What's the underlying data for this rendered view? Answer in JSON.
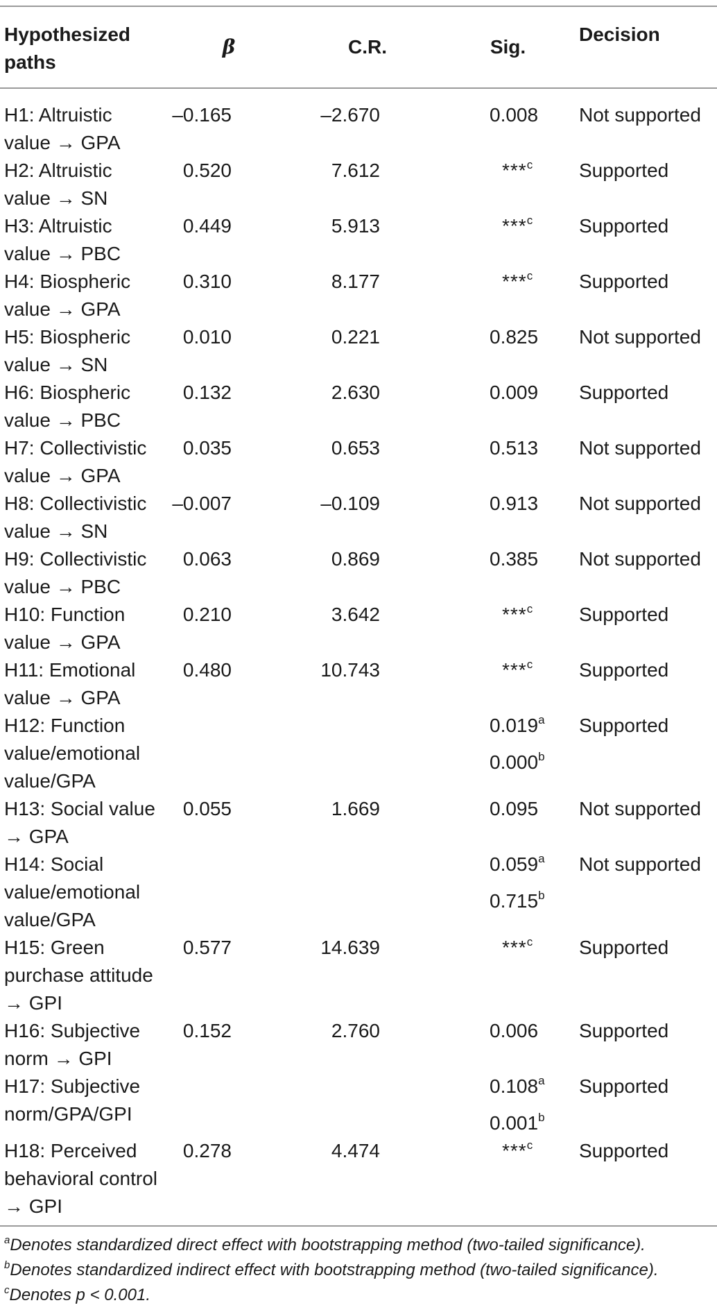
{
  "table": {
    "headers": {
      "path": "Hypothesized paths",
      "beta": "β",
      "cr": "C.R.",
      "sig": "Sig.",
      "decision": "Decision"
    },
    "rows": [
      {
        "path": "H1: Altruistic value → GPA",
        "beta": "–0.165",
        "cr": "–2.670",
        "sig": [
          "0.008"
        ],
        "decision": "Not supported"
      },
      {
        "path": "H2: Altruistic value → SN",
        "beta": "0.520",
        "cr": "7.612",
        "sig": [
          "***c"
        ],
        "decision": "Supported"
      },
      {
        "path": "H3: Altruistic value → PBC",
        "beta": "0.449",
        "cr": "5.913",
        "sig": [
          "***c"
        ],
        "decision": "Supported"
      },
      {
        "path": "H4: Biospheric value → GPA",
        "beta": "0.310",
        "cr": "8.177",
        "sig": [
          "***c"
        ],
        "decision": "Supported"
      },
      {
        "path": "H5: Biospheric value → SN",
        "beta": "0.010",
        "cr": "0.221",
        "sig": [
          "0.825"
        ],
        "decision": "Not supported"
      },
      {
        "path": "H6: Biospheric value → PBC",
        "beta": "0.132",
        "cr": "2.630",
        "sig": [
          "0.009"
        ],
        "decision": "Supported"
      },
      {
        "path": "H7: Collectivistic value → GPA",
        "beta": "0.035",
        "cr": "0.653",
        "sig": [
          "0.513"
        ],
        "decision": "Not supported"
      },
      {
        "path": "H8: Collectivistic value → SN",
        "beta": "–0.007",
        "cr": "–0.109",
        "sig": [
          "0.913"
        ],
        "decision": "Not supported"
      },
      {
        "path": "H9: Collectivistic value → PBC",
        "beta": "0.063",
        "cr": "0.869",
        "sig": [
          "0.385"
        ],
        "decision": "Not supported"
      },
      {
        "path": "H10: Function value → GPA",
        "beta": "0.210",
        "cr": "3.642",
        "sig": [
          "***c"
        ],
        "decision": "Supported"
      },
      {
        "path": "H11: Emotional value → GPA",
        "beta": "0.480",
        "cr": "10.743",
        "sig": [
          "***c"
        ],
        "decision": "Supported"
      },
      {
        "path": "H12: Function value/emotional value/GPA",
        "beta": "",
        "cr": "",
        "sig": [
          "0.019a",
          "0.000b"
        ],
        "decision": "Supported"
      },
      {
        "path": "H13: Social value → GPA",
        "beta": "0.055",
        "cr": "1.669",
        "sig": [
          "0.095"
        ],
        "decision": "Not supported"
      },
      {
        "path": "H14: Social value/emotional value/GPA",
        "beta": "",
        "cr": "",
        "sig": [
          "0.059a",
          "0.715b"
        ],
        "decision": "Not supported"
      },
      {
        "path": "H15: Green purchase attitude → GPI",
        "beta": "0.577",
        "cr": "14.639",
        "sig": [
          "***c"
        ],
        "decision": "Supported"
      },
      {
        "path": "H16: Subjective norm → GPI",
        "beta": "0.152",
        "cr": "2.760",
        "sig": [
          "0.006"
        ],
        "decision": "Supported"
      },
      {
        "path": "H17: Subjective norm/GPA/GPI",
        "beta": "",
        "cr": "",
        "sig": [
          "0.108a",
          "0.001b"
        ],
        "decision": "Supported"
      },
      {
        "path": "H18: Perceived behavioral control → GPI",
        "beta": "0.278",
        "cr": "4.474",
        "sig": [
          "***c"
        ],
        "decision": "Supported"
      }
    ]
  },
  "footnotes": [
    {
      "mark": "a",
      "text": "Denotes standardized direct effect with bootstrapping method (two-tailed significance)."
    },
    {
      "mark": "b",
      "text": "Denotes standardized indirect effect with bootstrapping method (two-tailed significance)."
    },
    {
      "mark": "c",
      "text": "Denotes p < 0.001."
    }
  ]
}
